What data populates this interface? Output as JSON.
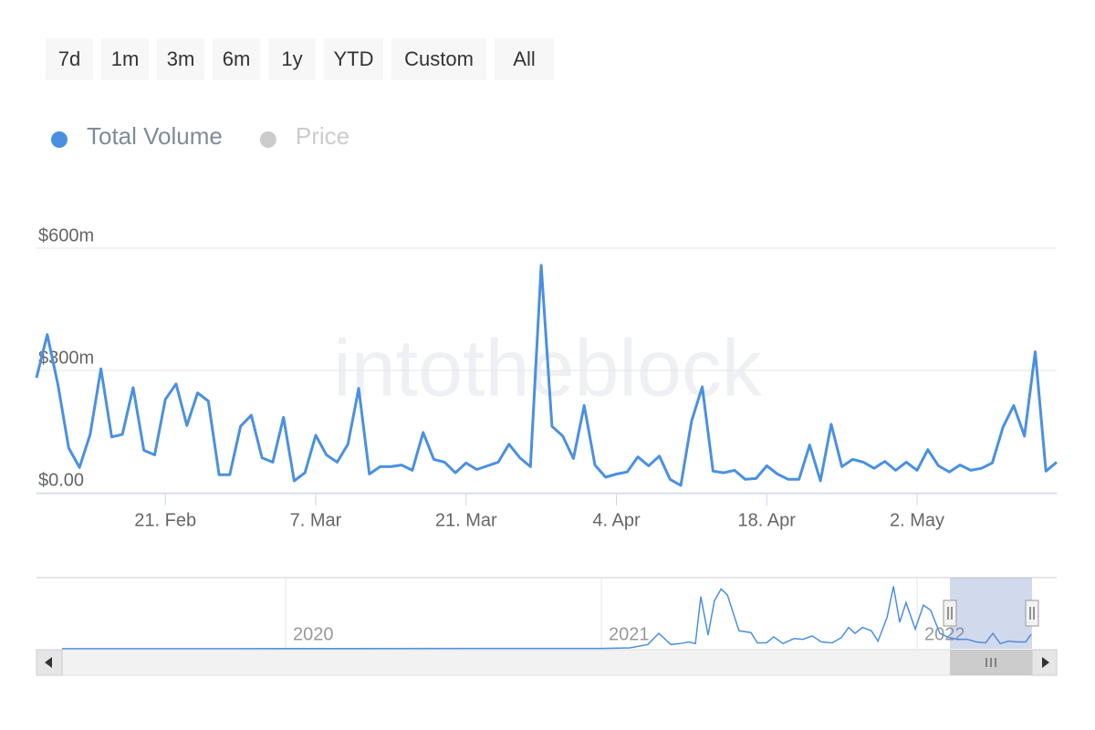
{
  "range_buttons": [
    "7d",
    "1m",
    "3m",
    "6m",
    "1y",
    "YTD",
    "Custom",
    "All"
  ],
  "chart_data": {
    "type": "line",
    "watermark": "intotheblock",
    "categories": [
      null,
      null,
      null,
      null,
      null,
      null,
      null,
      null,
      null,
      null,
      null,
      null,
      "21. Feb",
      null,
      null,
      null,
      null,
      null,
      null,
      null,
      null,
      null,
      null,
      null,
      null,
      null,
      "7. Mar",
      null,
      null,
      null,
      null,
      null,
      null,
      null,
      null,
      null,
      null,
      null,
      null,
      null,
      "21. Mar",
      null,
      null,
      null,
      null,
      null,
      null,
      null,
      null,
      null,
      null,
      null,
      null,
      null,
      "4. Apr",
      null,
      null,
      null,
      null,
      null,
      null,
      null,
      null,
      null,
      null,
      null,
      null,
      null,
      "18. Apr",
      null,
      null,
      null,
      null,
      null,
      null,
      null,
      null,
      null,
      null,
      null,
      null,
      null,
      "2. May",
      null,
      null,
      null,
      null,
      null,
      null,
      null,
      null,
      null,
      null,
      null,
      null,
      null
    ],
    "series": [
      {
        "name": "Total Volume",
        "color": "#4a90e2",
        "values": [
          282,
          388,
          265,
          110,
          62,
          143,
          304,
          137,
          143,
          258,
          104,
          93,
          229,
          267,
          165,
          245,
          225,
          44,
          44,
          163,
          190,
          86,
          75,
          185,
          29,
          49,
          141,
          93,
          75,
          119,
          256,
          46,
          64,
          64,
          68,
          55,
          148,
          82,
          75,
          49,
          73,
          57,
          66,
          75,
          119,
          86,
          64,
          558,
          163,
          139,
          84,
          214,
          68,
          38,
          46,
          51,
          88,
          66,
          90,
          33,
          18,
          176,
          260,
          53,
          49,
          55,
          33,
          35,
          66,
          46,
          33,
          33,
          117,
          29,
          168,
          64,
          82,
          75,
          60,
          77,
          55,
          75,
          55,
          106,
          66,
          51,
          68,
          55,
          60,
          73,
          161,
          214,
          139,
          346,
          53,
          75
        ]
      }
    ],
    "inactive_legend": [
      {
        "name": "Price",
        "color": "#cccccc"
      }
    ],
    "ylim": [
      0,
      600
    ],
    "yticks": [
      {
        "value": 0,
        "label": "$0.00"
      },
      {
        "value": 300,
        "label": "$300m"
      },
      {
        "value": 600,
        "label": "$600m"
      }
    ],
    "grid": true,
    "navigator": {
      "type": "line",
      "xlim": [
        2019.211,
        2022.442
      ],
      "xticks": [
        2020,
        2021,
        2022
      ],
      "x": [
        2019.292,
        2020,
        2021,
        2021.09,
        2021.147,
        2021.182,
        2021.22,
        2021.249,
        2021.277,
        2021.298,
        2021.315,
        2021.338,
        2021.358,
        2021.379,
        2021.399,
        2021.436,
        2021.474,
        2021.494,
        2021.523,
        2021.546,
        2021.575,
        2021.61,
        2021.639,
        2021.668,
        2021.697,
        2021.731,
        2021.76,
        2021.783,
        2021.803,
        2021.827,
        2021.855,
        2021.876,
        2021.905,
        2021.925,
        2021.945,
        2021.965,
        2021.994,
        2022.02,
        2022.043,
        2022.072,
        2022.101,
        2022.13,
        2022.159,
        2022.188,
        2022.217,
        2022.24,
        2022.263,
        2022.289,
        2022.318,
        2022.344,
        2022.361
      ],
      "values": [
        1,
        2,
        3,
        8,
        38,
        137,
        38,
        46,
        61,
        46,
        464,
        122,
        426,
        532,
        479,
        160,
        144,
        53,
        53,
        106,
        46,
        91,
        84,
        114,
        61,
        53,
        99,
        190,
        137,
        190,
        160,
        68,
        281,
        555,
        236,
        410,
        175,
        388,
        342,
        137,
        99,
        84,
        84,
        61,
        53,
        137,
        46,
        68,
        61,
        61,
        129
      ]
    }
  }
}
